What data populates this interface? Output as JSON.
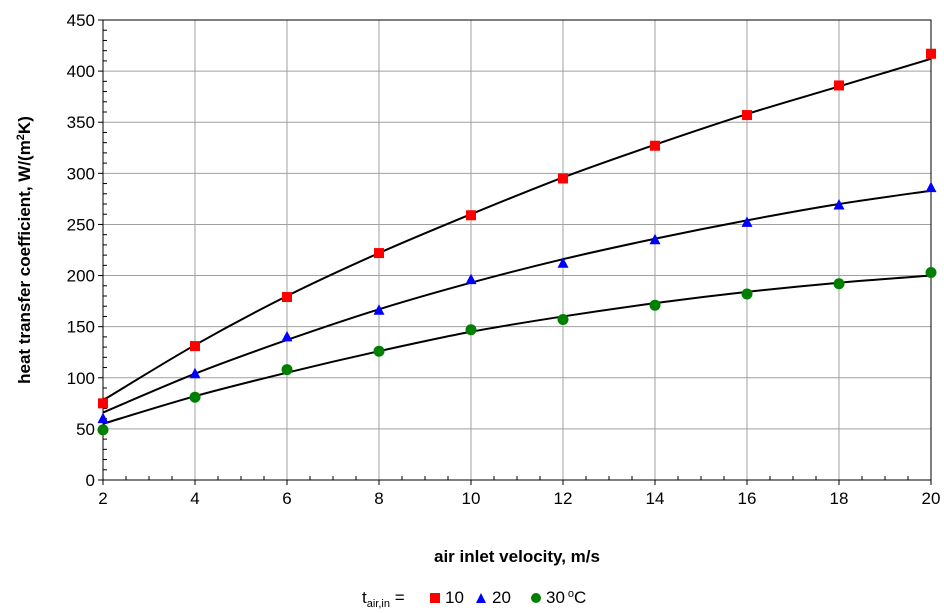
{
  "chart_data": {
    "type": "scatter",
    "title": "",
    "xlabel": "air inlet velocity, m/s",
    "ylabel_main": "heat transfer coefficient, W/(m",
    "ylabel_sup": "2",
    "ylabel_end": "K)",
    "xlim": [
      2,
      20
    ],
    "ylim": [
      0,
      450
    ],
    "xticks": [
      2,
      4,
      6,
      8,
      10,
      12,
      14,
      16,
      18,
      20
    ],
    "yticks": [
      0,
      50,
      100,
      150,
      200,
      250,
      300,
      350,
      400,
      450
    ],
    "grid": true,
    "legend": {
      "placement": "bottom",
      "prefix_main": "t",
      "prefix_sub": "air,in",
      "prefix_eq": " = ",
      "unit_sup": "o",
      "unit_end": "C"
    },
    "x": [
      2,
      4,
      6,
      8,
      10,
      12,
      14,
      16,
      18,
      20
    ],
    "series": [
      {
        "name": "10",
        "marker": "square",
        "color": "#ff0000",
        "values": [
          75,
          131,
          179,
          222,
          259,
          295,
          327,
          357,
          386,
          417
        ],
        "trend": [
          78,
          132,
          180,
          222,
          260,
          296,
          328,
          358,
          385,
          412
        ]
      },
      {
        "name": "20",
        "marker": "triangle",
        "color": "#0000ff",
        "values": [
          60,
          104,
          140,
          166,
          196,
          212,
          235,
          252,
          269,
          286
        ],
        "trend": [
          66,
          104,
          137,
          167,
          193,
          216,
          236,
          254,
          270,
          283
        ]
      },
      {
        "name": "30",
        "marker": "circle",
        "color": "#008000",
        "values": [
          49,
          81,
          108,
          126,
          147,
          157,
          171,
          182,
          192,
          203
        ],
        "trend": [
          55,
          82,
          105,
          126,
          145,
          160,
          173,
          184,
          193,
          200
        ]
      }
    ],
    "trend_color": "#000000"
  }
}
